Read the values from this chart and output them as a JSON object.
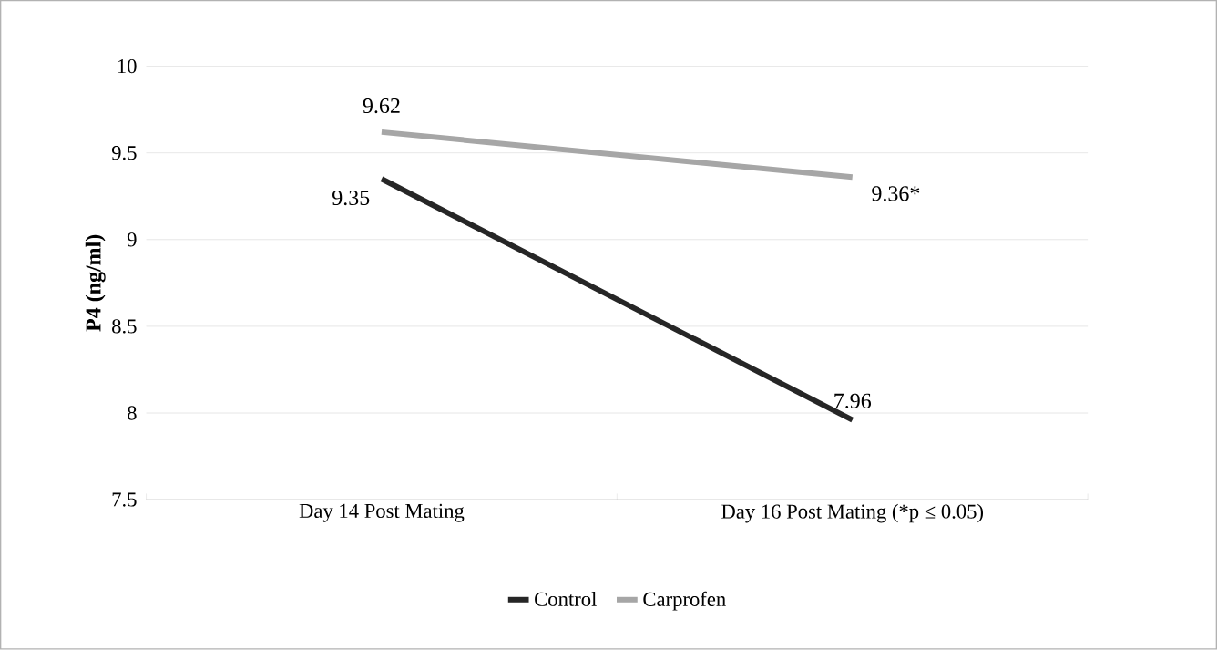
{
  "chart_data": {
    "type": "line",
    "ylabel": "P4 (ng/ml)",
    "categories": [
      "Day 14 Post Mating",
      "Day 16 Post Mating (*p ≤ 0.05)"
    ],
    "series": [
      {
        "name": "Control",
        "color": "#262626",
        "values": [
          9.35,
          7.96
        ],
        "value_labels": [
          "9.35",
          "7.96"
        ]
      },
      {
        "name": "Carprofen",
        "color": "#a6a6a6",
        "values": [
          9.62,
          9.36
        ],
        "value_labels": [
          "9.62",
          "9.36*"
        ]
      }
    ],
    "ylim": [
      7.5,
      10
    ],
    "yticks": [
      7.5,
      8,
      8.5,
      9,
      9.5,
      10
    ],
    "grid": "y",
    "legend": "bottom",
    "marker": "none",
    "line_style": "solid"
  }
}
